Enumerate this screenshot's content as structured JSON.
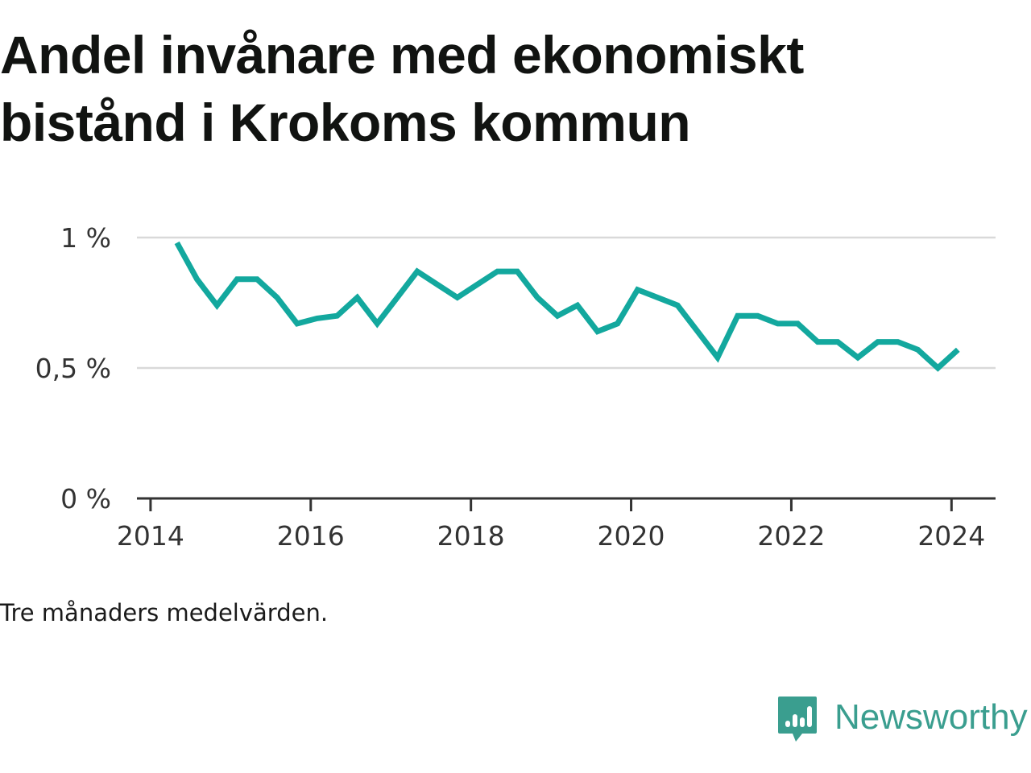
{
  "title_lines": [
    "Andel invånare med ekonomiskt",
    "bistånd i Krokoms kommun"
  ],
  "caption": "Tre månaders medelvärden.",
  "brand": {
    "name": "Newsworthy",
    "icon": "bar-chart-speech-bubble-icon",
    "color": "#3a9e8f"
  },
  "chart_data": {
    "type": "line",
    "title": "Andel invånare med ekonomiskt bistånd i Krokoms kommun",
    "xlabel": "",
    "ylabel": "",
    "x_ticks": [
      "2014",
      "2016",
      "2018",
      "2020",
      "2022",
      "2024"
    ],
    "x_tick_values": [
      2014,
      2016,
      2018,
      2020,
      2022,
      2024
    ],
    "y_ticks": [
      "0 %",
      "0,5 %",
      "1 %"
    ],
    "y_tick_values": [
      0,
      0.5,
      1.0
    ],
    "xlim": [
      2013.83,
      2024.55
    ],
    "ylim": [
      0,
      1.0
    ],
    "grid": "horizontal",
    "line_color": "#13a89e",
    "series": [
      {
        "x": [
          2014.33,
          2014.58,
          2014.83,
          2015.08,
          2015.33,
          2015.58,
          2015.83,
          2016.08,
          2016.33,
          2016.58,
          2016.83,
          2017.08,
          2017.33,
          2017.58,
          2017.83,
          2018.08,
          2018.33,
          2018.58,
          2018.83,
          2019.08,
          2019.33,
          2019.58,
          2019.83,
          2020.08,
          2020.33,
          2020.58,
          2020.83,
          2021.08,
          2021.33,
          2021.58,
          2021.83,
          2022.08,
          2022.33,
          2022.58,
          2022.83,
          2023.08,
          2023.33,
          2023.58,
          2023.83,
          2024.08
        ],
        "values": [
          0.98,
          0.84,
          0.74,
          0.84,
          0.84,
          0.77,
          0.67,
          0.69,
          0.7,
          0.77,
          0.67,
          0.77,
          0.87,
          0.82,
          0.77,
          0.82,
          0.87,
          0.87,
          0.77,
          0.7,
          0.74,
          0.64,
          0.67,
          0.8,
          0.77,
          0.74,
          0.64,
          0.54,
          0.7,
          0.7,
          0.67,
          0.67,
          0.6,
          0.6,
          0.54,
          0.6,
          0.6,
          0.57,
          0.5,
          0.57
        ]
      }
    ]
  }
}
